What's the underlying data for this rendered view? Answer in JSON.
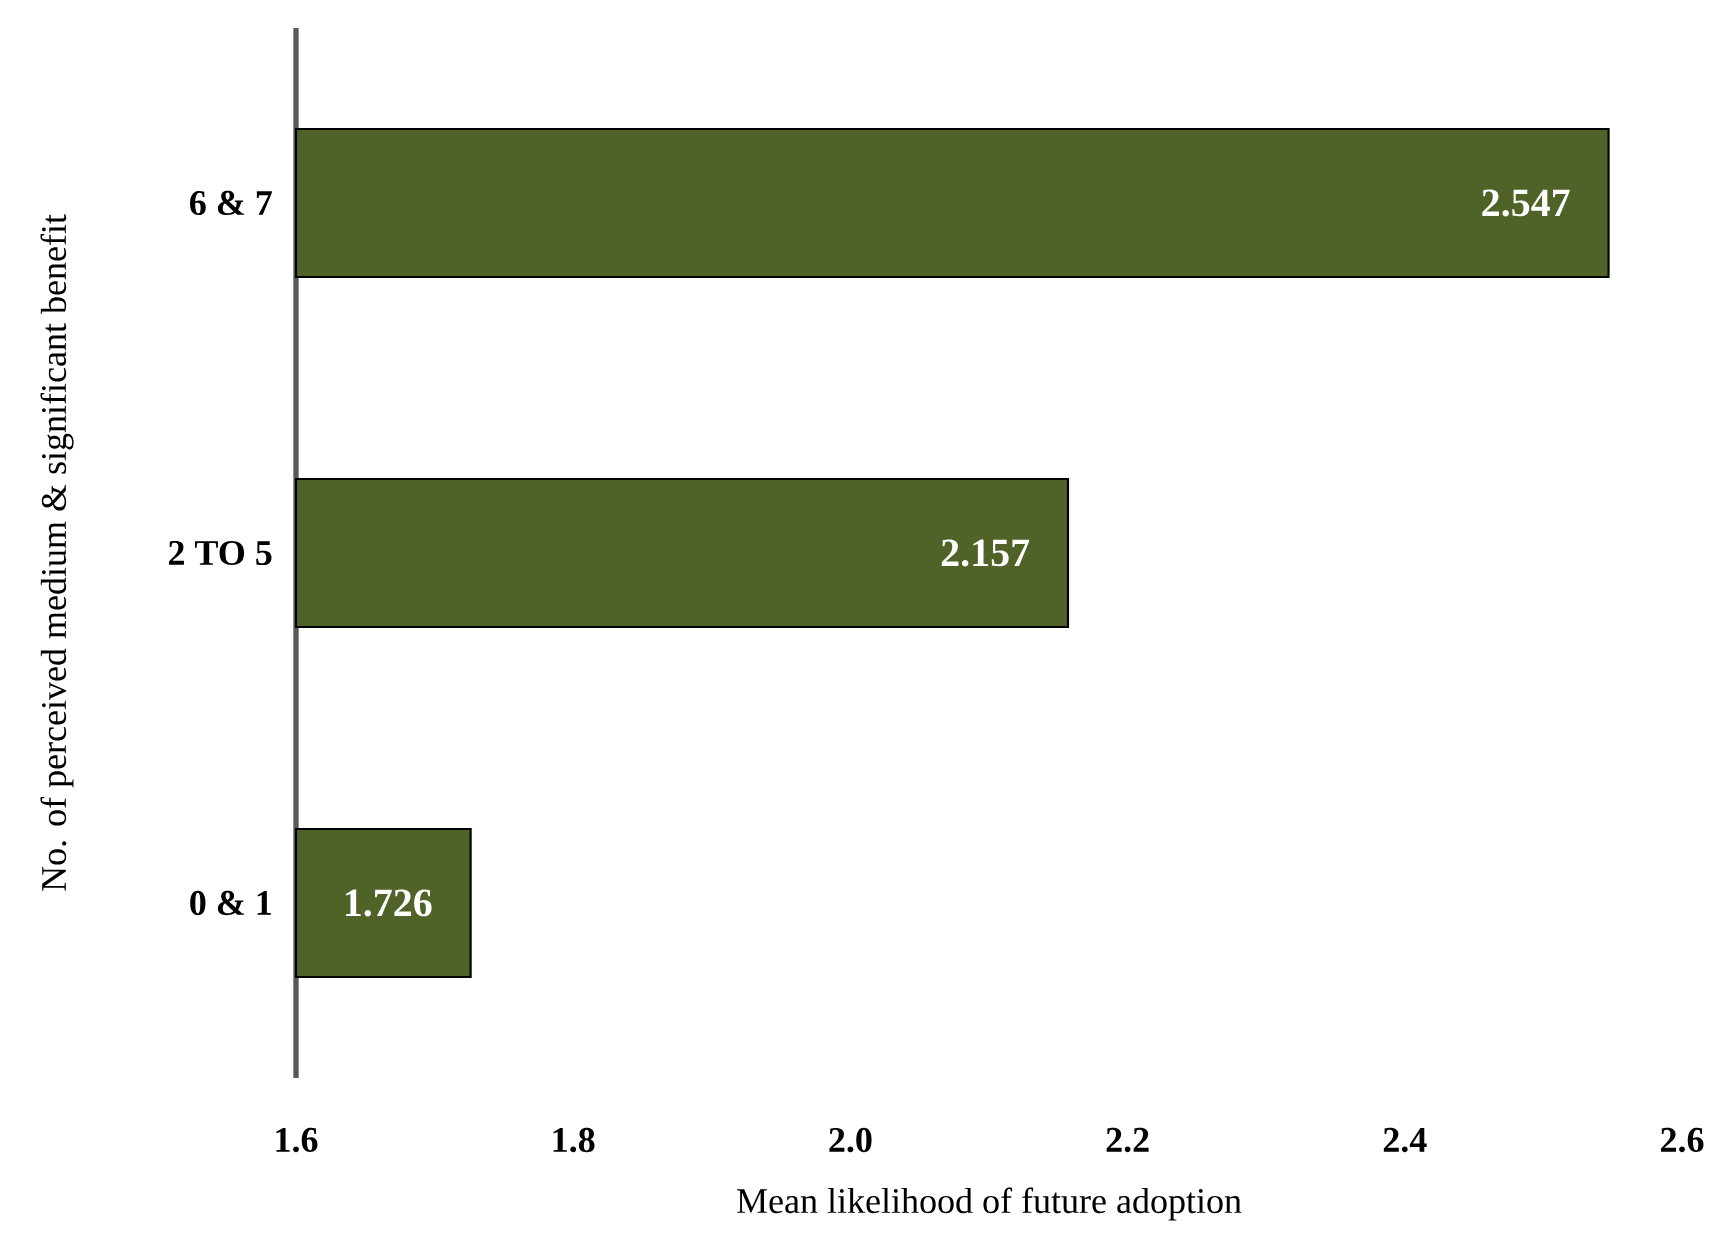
{
  "chart_data": {
    "type": "bar",
    "orientation": "horizontal",
    "xlabel": "Mean likelihood of future adoption",
    "ylabel": "No. of perceived medium & significant benefit",
    "categories": [
      "6 & 7",
      "2 TO 5",
      "0 & 1"
    ],
    "values": [
      2.547,
      2.157,
      1.726
    ],
    "color": "#4f6228",
    "data_labels": true,
    "xlim": [
      1.6,
      2.6
    ],
    "xticks": [
      1.6,
      1.8,
      {
        "value": 2.0,
        "label": "2.0"
      },
      2.2,
      2.4,
      2.6
    ],
    "grid": false
  }
}
